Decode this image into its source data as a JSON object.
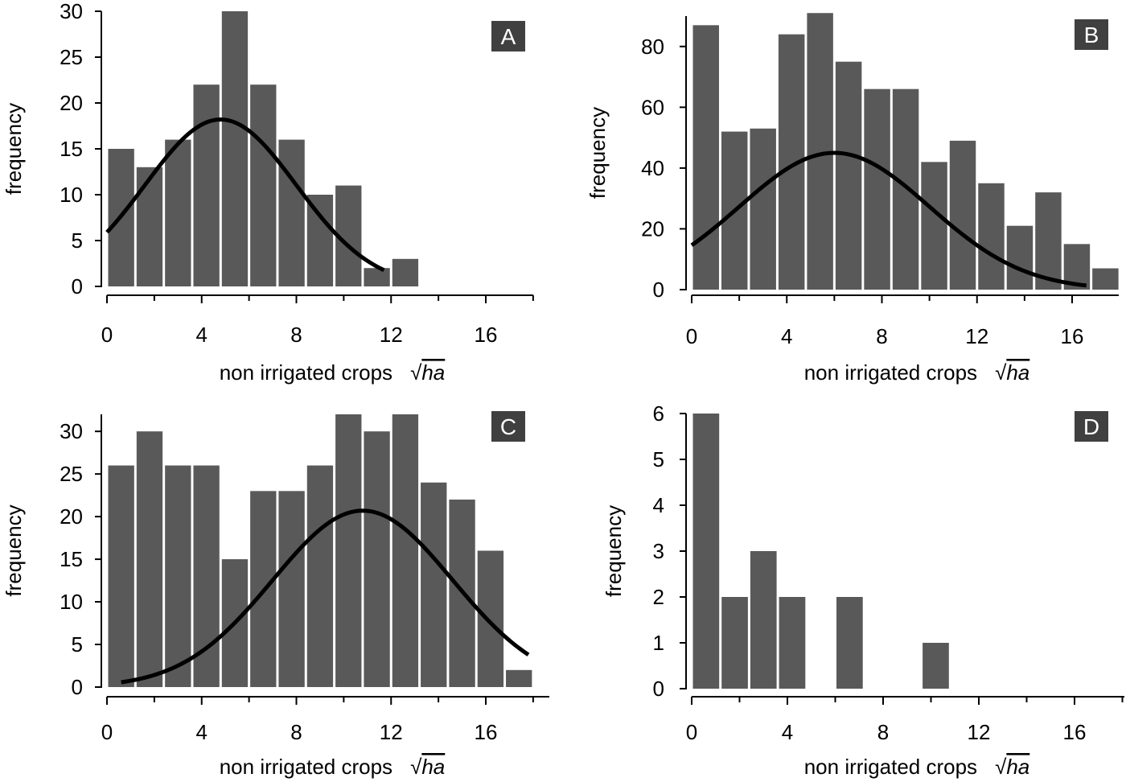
{
  "chart_data": [
    {
      "type": "bar",
      "panel_label": "A",
      "xlabel": "non irrigated crops",
      "xlabel_unit": "√ha",
      "ylabel": "frequency",
      "bin_width": 1.2,
      "x_start": 0,
      "xlim": [
        0,
        18
      ],
      "ylim": [
        0,
        30
      ],
      "xticks": [
        "0",
        "4",
        "8",
        "12",
        "16"
      ],
      "yticks": [
        "0",
        "5",
        "10",
        "15",
        "20",
        "25",
        "30"
      ],
      "values": [
        15,
        13,
        16,
        22,
        30,
        22,
        16,
        10,
        11,
        2,
        3
      ],
      "fit_curve": {
        "type": "normal",
        "peak": 18.2,
        "mean": 4.8,
        "sd": 3.2,
        "x_range": [
          0,
          11.7
        ]
      }
    },
    {
      "type": "bar",
      "panel_label": "B",
      "xlabel": "non irrigated crops",
      "xlabel_unit": "√ha",
      "ylabel": "frequency",
      "bin_width": 1.2,
      "x_start": 0,
      "xlim": [
        0,
        18
      ],
      "ylim": [
        0,
        90
      ],
      "xticks": [
        "0",
        "4",
        "8",
        "12",
        "16"
      ],
      "yticks": [
        "0",
        "20",
        "40",
        "60",
        "80"
      ],
      "values": [
        87,
        52,
        53,
        84,
        91,
        75,
        66,
        66,
        42,
        49,
        35,
        21,
        32,
        15,
        7
      ],
      "fit_curve": {
        "type": "normal",
        "peak": 45,
        "mean": 6,
        "sd": 4,
        "x_range": [
          0,
          16.6
        ]
      }
    },
    {
      "type": "bar",
      "panel_label": "C",
      "xlabel": "non irrigated crops",
      "xlabel_unit": "√ha",
      "ylabel": "frequency",
      "bin_width": 1.2,
      "x_start": 0,
      "xlim": [
        0,
        18
      ],
      "ylim": [
        0,
        32
      ],
      "xticks": [
        "0",
        "4",
        "8",
        "12",
        "16"
      ],
      "yticks": [
        "0",
        "5",
        "10",
        "15",
        "20",
        "25",
        "30"
      ],
      "values": [
        26,
        30,
        26,
        26,
        15,
        23,
        23,
        26,
        32,
        30,
        32,
        24,
        22,
        16,
        2
      ],
      "fit_curve": {
        "type": "normal",
        "peak": 20.7,
        "mean": 10.8,
        "sd": 3.8,
        "x_range": [
          0.6,
          17.8
        ]
      }
    },
    {
      "type": "bar",
      "panel_label": "D",
      "xlabel": "non irrigated crops",
      "xlabel_unit": "√ha",
      "ylabel": "frequency",
      "bin_width": 1.2,
      "x_start": 0,
      "xlim": [
        0,
        18
      ],
      "ylim": [
        0,
        6
      ],
      "xticks": [
        "0",
        "4",
        "8",
        "12",
        "16"
      ],
      "yticks": [
        "0",
        "1",
        "2",
        "3",
        "4",
        "5",
        "6"
      ],
      "values": [
        6,
        2,
        3,
        2,
        0,
        2,
        0,
        0,
        1
      ],
      "fit_curve": null
    }
  ],
  "colors": {
    "bar": "#595959",
    "curve": "#000000",
    "label_box": "#404040"
  }
}
